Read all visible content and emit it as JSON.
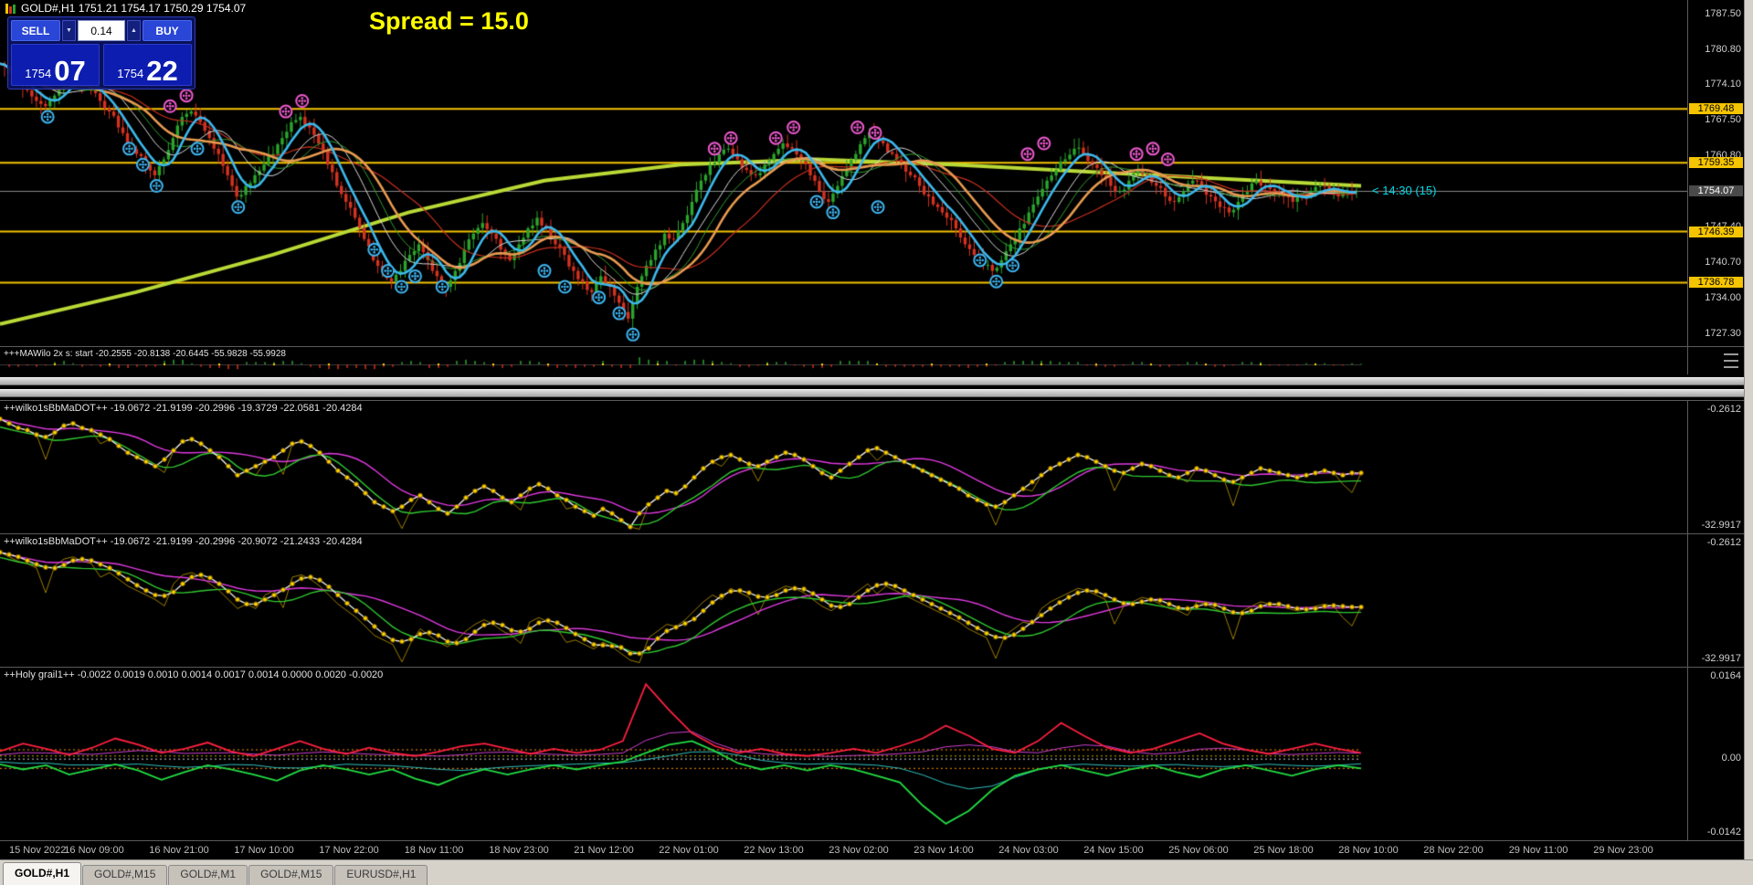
{
  "window": {
    "chart_title": "GOLD#,H1  1751.21 1754.17 1750.29 1754.07"
  },
  "trade_panel": {
    "sell_label": "SELL",
    "buy_label": "BUY",
    "lot_value": "0.14",
    "sell_price_small": "1754",
    "sell_price_big": "07",
    "buy_price_small": "1754",
    "buy_price_big": "22"
  },
  "icons": {
    "lot_down": "▼",
    "lot_up": "▲"
  },
  "annotations": {
    "spread_note": "Spread = 15.0",
    "candle_countdown": "< 14:30 (15)"
  },
  "price_scale": {
    "ticks": [
      "1787.50",
      "1780.80",
      "1774.10",
      "1767.50",
      "1760.80",
      "1747.40",
      "1740.70",
      "1734.00",
      "1727.30"
    ],
    "tick_prices": [
      1787.5,
      1780.8,
      1774.1,
      1767.5,
      1760.8,
      1747.4,
      1740.7,
      1734.0,
      1727.3
    ],
    "level_tags": [
      {
        "label": "1769.48",
        "price": 1769.48
      },
      {
        "label": "1759.35",
        "price": 1759.35
      },
      {
        "label": "1746.39",
        "price": 1746.39
      },
      {
        "label": "1736.78",
        "price": 1736.78
      }
    ],
    "current_tag": {
      "label": "1754.07",
      "price": 1754.07
    }
  },
  "panels": [
    {
      "label": "+++MAWilo 2x s: start -20.2555 -20.8138 -20.6445 -55.9828 -55.9928"
    },
    {
      "label": "++wilko1sBbMaDOT++ -19.0672 -21.9199 -20.2996 -19.3729 -22.0581 -20.4284",
      "top_value": "-0.2612",
      "bottom_value": "-32.9917"
    },
    {
      "label": "++wilko1sBbMaDOT++ -19.0672 -21.9199 -20.2996 -20.9072 -21.2433 -20.4284",
      "top_value": "-0.2612",
      "bottom_value": "-32.9917"
    },
    {
      "label": "++Holy grail1++ -0.0022 0.0019 0.0010 0.0014 0.0017 0.0014 0.0000 0.0020 -0.0020",
      "top_value": "0.0164",
      "mid_value": "0.00",
      "bottom_value": "-0.0142"
    }
  ],
  "time_axis": [
    "15 Nov 2022",
    "16 Nov 09:00",
    "16 Nov 21:00",
    "17 Nov 10:00",
    "17 Nov 22:00",
    "18 Nov 11:00",
    "18 Nov 23:00",
    "21 Nov 12:00",
    "22 Nov 01:00",
    "22 Nov 13:00",
    "23 Nov 02:00",
    "23 Nov 14:00",
    "24 Nov 03:00",
    "24 Nov 15:00",
    "25 Nov 06:00",
    "25 Nov 18:00",
    "28 Nov 10:00",
    "28 Nov 22:00",
    "29 Nov 11:00",
    "29 Nov 23:00"
  ],
  "tabs": [
    {
      "label": "GOLD#,H1",
      "active": true
    },
    {
      "label": "GOLD#,M15",
      "active": false
    },
    {
      "label": "GOLD#,M1",
      "active": false
    },
    {
      "label": "GOLD#,M15",
      "active": false
    },
    {
      "label": "EURUSD#,H1",
      "active": false
    }
  ],
  "colors": {
    "level_line": "#f5c400",
    "up_candle": "#2aa52c",
    "down_candle": "#d53220",
    "ma_fast": "#3cb9ec",
    "ma_med": "#e89a50",
    "ma_slow": "#b9d936",
    "ma_thin_red": "#c8301e",
    "ma_thin_white": "#d8d8d8",
    "ma_thin_green": "#2f9e2f",
    "marker_buy": "#3fb6f2",
    "marker_sell": "#ef5ad0",
    "beads": "#ffd400",
    "wilko_white": "#e8e8e8",
    "wilko_magenta": "#e23ae2",
    "wilko_green": "#30c830",
    "wilko_olive": "#9a7d00",
    "grail_red": "#ff2040",
    "grail_green": "#22dd44",
    "grail_magenta": "#d040d0",
    "grail_teal": "#30c0c0"
  },
  "chart_data": {
    "type": "candlestick",
    "symbol": "GOLD#",
    "timeframe": "H1",
    "main": {
      "price_top": 1790.0,
      "price_bottom": 1725.0,
      "levels": [
        1769.48,
        1759.35,
        1746.39,
        1736.78
      ],
      "current_price": 1754.07,
      "closes": [
        1778,
        1776,
        1774,
        1773,
        1771,
        1770,
        1772,
        1775,
        1776,
        1774,
        1773,
        1771,
        1769,
        1766,
        1763,
        1761,
        1759,
        1757,
        1760,
        1764,
        1768,
        1769,
        1767,
        1764,
        1761,
        1757,
        1753,
        1755,
        1757,
        1759,
        1761,
        1764,
        1767,
        1768,
        1766,
        1763,
        1759,
        1755,
        1752,
        1749,
        1745,
        1741,
        1739,
        1737,
        1739,
        1742,
        1744,
        1741,
        1738,
        1736,
        1739,
        1743,
        1746,
        1748,
        1746,
        1743,
        1741,
        1744,
        1747,
        1749,
        1747,
        1744,
        1742,
        1739,
        1737,
        1735,
        1738,
        1736,
        1733,
        1730,
        1736,
        1740,
        1743,
        1746,
        1745,
        1748,
        1752,
        1756,
        1759,
        1761,
        1762,
        1760,
        1758,
        1757,
        1759,
        1761,
        1763,
        1762,
        1760,
        1757,
        1754,
        1752,
        1755,
        1758,
        1761,
        1764,
        1765,
        1763,
        1761,
        1759,
        1757,
        1755,
        1753,
        1751,
        1749,
        1747,
        1744,
        1742,
        1740,
        1739,
        1741,
        1744,
        1747,
        1750,
        1753,
        1756,
        1758,
        1760,
        1762,
        1761,
        1759,
        1757,
        1755,
        1754,
        1756,
        1758,
        1757,
        1755,
        1753,
        1752,
        1754,
        1756,
        1755,
        1753,
        1751,
        1750,
        1752,
        1754,
        1756,
        1755,
        1754,
        1753,
        1752,
        1753,
        1754,
        1755,
        1754,
        1753,
        1754,
        1754
      ],
      "slow_ma": [
        [
          0,
          1729
        ],
        [
          0.1,
          1735
        ],
        [
          0.2,
          1742
        ],
        [
          0.3,
          1750
        ],
        [
          0.4,
          1756
        ],
        [
          0.5,
          1759
        ],
        [
          0.6,
          1760
        ],
        [
          0.7,
          1759
        ],
        [
          0.85,
          1757
        ],
        [
          1,
          1755
        ]
      ],
      "buy_markers": [
        [
          0.035,
          1768
        ],
        [
          0.095,
          1762
        ],
        [
          0.105,
          1759
        ],
        [
          0.115,
          1755
        ],
        [
          0.145,
          1762
        ],
        [
          0.175,
          1751
        ],
        [
          0.275,
          1743
        ],
        [
          0.285,
          1739
        ],
        [
          0.295,
          1736
        ],
        [
          0.305,
          1738
        ],
        [
          0.325,
          1736
        ],
        [
          0.4,
          1739
        ],
        [
          0.415,
          1736
        ],
        [
          0.44,
          1734
        ],
        [
          0.455,
          1731
        ],
        [
          0.465,
          1727
        ],
        [
          0.6,
          1752
        ],
        [
          0.612,
          1750
        ],
        [
          0.645,
          1751
        ],
        [
          0.72,
          1741
        ],
        [
          0.732,
          1737
        ],
        [
          0.744,
          1740
        ]
      ],
      "sell_markers": [
        [
          0.125,
          1770
        ],
        [
          0.137,
          1772
        ],
        [
          0.21,
          1769
        ],
        [
          0.222,
          1771
        ],
        [
          0.525,
          1762
        ],
        [
          0.537,
          1764
        ],
        [
          0.57,
          1764
        ],
        [
          0.583,
          1766
        ],
        [
          0.63,
          1766
        ],
        [
          0.643,
          1765
        ],
        [
          0.755,
          1761
        ],
        [
          0.767,
          1763
        ],
        [
          0.835,
          1761
        ],
        [
          0.847,
          1762
        ],
        [
          0.858,
          1760
        ]
      ]
    },
    "wilko": {
      "range_top": 0,
      "range_bottom": -34,
      "scale": 0.62,
      "base": 1784
    },
    "grail": {
      "range_top": 0.017,
      "range_bottom": -0.015,
      "dotted_levels": [
        0.0018,
        -0.0018,
        0.0006,
        0
      ],
      "red": [
        0.0015,
        0.003,
        0.002,
        0.0008,
        0.0022,
        0.004,
        0.0028,
        0.0012,
        0.002,
        0.0032,
        0.0015,
        0.0006,
        0.002,
        0.0035,
        0.002,
        0.001,
        0.0022,
        0.0012,
        0.0006,
        0.0014,
        0.0025,
        0.003,
        0.002,
        0.001,
        0.002,
        0.0012,
        0.0018,
        0.0035,
        0.0145,
        0.0095,
        0.005,
        0.0025,
        0.0012,
        0.002,
        0.001,
        0.0006,
        0.0012,
        0.002,
        0.0012,
        0.0025,
        0.004,
        0.0065,
        0.0045,
        0.002,
        0.0012,
        0.0035,
        0.007,
        0.0045,
        0.0022,
        0.0012,
        0.002,
        0.0035,
        0.005,
        0.003,
        0.0018,
        0.001,
        0.002,
        0.003,
        0.002,
        0.0012
      ],
      "green": [
        -0.001,
        -0.002,
        -0.0012,
        -0.003,
        -0.002,
        -0.001,
        -0.0022,
        -0.004,
        -0.0025,
        -0.0012,
        -0.002,
        -0.003,
        -0.0042,
        -0.0022,
        -0.0012,
        -0.002,
        -0.003,
        -0.002,
        -0.0038,
        -0.005,
        -0.0032,
        -0.002,
        -0.003,
        -0.002,
        -0.0012,
        -0.002,
        -0.0012,
        -0.0005,
        0.0012,
        0.0028,
        0.0035,
        0.0015,
        -0.0008,
        -0.002,
        -0.0012,
        -0.0022,
        -0.0012,
        -0.002,
        -0.0032,
        -0.0045,
        -0.009,
        -0.0125,
        -0.01,
        -0.006,
        -0.0032,
        -0.002,
        -0.0012,
        -0.0022,
        -0.0032,
        -0.002,
        -0.0012,
        -0.0025,
        -0.0035,
        -0.002,
        -0.0012,
        -0.0022,
        -0.0032,
        -0.002,
        -0.0012,
        -0.0018
      ]
    }
  }
}
